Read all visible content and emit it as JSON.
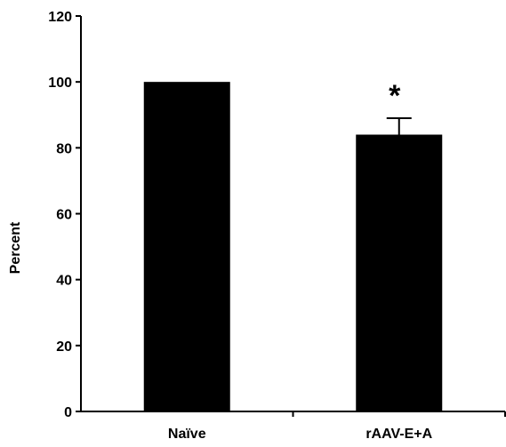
{
  "chart_data": {
    "type": "bar",
    "categories": [
      "Naïve",
      "rAAV-E+A"
    ],
    "values": [
      100,
      84
    ],
    "errors": [
      null,
      5
    ],
    "annotations": [
      null,
      "*"
    ],
    "title": "",
    "xlabel": "",
    "ylabel": "Percent",
    "ylim": [
      0,
      120
    ],
    "yticks": [
      0,
      20,
      40,
      60,
      80,
      100,
      120
    ],
    "grid": false,
    "legend": "none",
    "colors": {
      "bar": "#000000",
      "axis": "#000000",
      "background": "#ffffff"
    }
  }
}
